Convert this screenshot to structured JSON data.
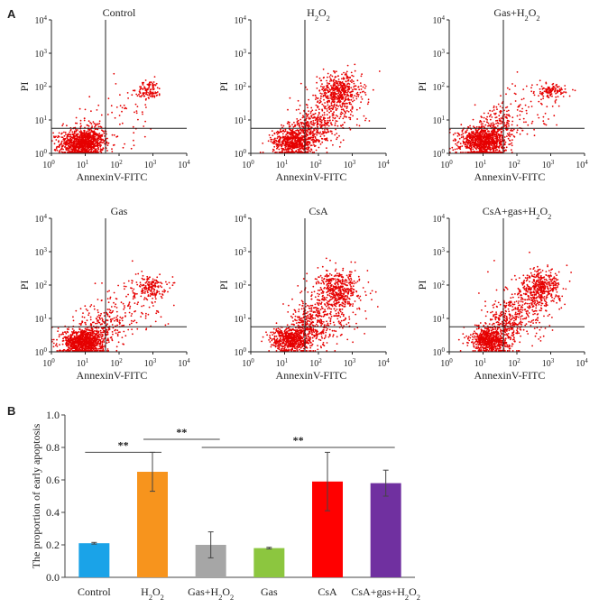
{
  "panel_a_label": "A",
  "panel_b_label": "B",
  "chart_data": [
    {
      "type": "scatter",
      "title": "Control",
      "xlabel": "AnnexinV-FITC",
      "ylabel": "PI",
      "x_ticks": [
        "10",
        "10",
        "10",
        "10",
        "10"
      ],
      "x_tick_exps": [
        "0",
        "1",
        "2",
        "3",
        "4"
      ],
      "y_ticks": [
        "10",
        "10",
        "10",
        "10",
        "10"
      ],
      "y_tick_exps": [
        "0",
        "1",
        "2",
        "3",
        "4"
      ],
      "xlim": [
        0,
        4
      ],
      "ylim": [
        0,
        4
      ],
      "scale": "log",
      "quadrant_gate": {
        "x": 1.6,
        "y": 0.75
      },
      "clusters": [
        {
          "cx": 0.9,
          "cy": 0.28,
          "sx": 0.32,
          "sy": 0.2,
          "n": 900
        },
        {
          "cx": 1.15,
          "cy": 0.55,
          "sx": 0.35,
          "sy": 0.25,
          "n": 150
        },
        {
          "cx": 2.9,
          "cy": 1.9,
          "sx": 0.18,
          "sy": 0.14,
          "n": 110
        },
        {
          "cx": 2.2,
          "cy": 1.3,
          "sx": 0.6,
          "sy": 0.5,
          "n": 60
        }
      ]
    },
    {
      "type": "scatter",
      "title": "H",
      "title_sub": "2",
      "title_mid": "O",
      "title_sub2": "2",
      "xlabel": "AnnexinV-FITC",
      "ylabel": "PI",
      "x_ticks": [
        "10",
        "10",
        "10",
        "10",
        "10"
      ],
      "x_tick_exps": [
        "0",
        "1",
        "2",
        "3",
        "4"
      ],
      "y_ticks": [
        "10",
        "10",
        "10",
        "10",
        "10"
      ],
      "y_tick_exps": [
        "0",
        "1",
        "2",
        "3",
        "4"
      ],
      "xlim": [
        0,
        4
      ],
      "ylim": [
        0,
        4
      ],
      "scale": "log",
      "quadrant_gate": {
        "x": 1.6,
        "y": 0.75
      },
      "clusters": [
        {
          "cx": 1.25,
          "cy": 0.35,
          "sx": 0.3,
          "sy": 0.2,
          "n": 600
        },
        {
          "cx": 1.8,
          "cy": 0.75,
          "sx": 0.35,
          "sy": 0.3,
          "n": 300
        },
        {
          "cx": 2.65,
          "cy": 1.85,
          "sx": 0.32,
          "sy": 0.28,
          "n": 450
        },
        {
          "cx": 2.4,
          "cy": 1.3,
          "sx": 0.45,
          "sy": 0.45,
          "n": 200
        }
      ]
    },
    {
      "type": "scatter",
      "title": "Gas+H",
      "title_sub": "2",
      "title_mid": "O",
      "title_sub2": "2",
      "xlabel": "AnnexinV-FITC",
      "ylabel": "PI",
      "x_ticks": [
        "10",
        "10",
        "10",
        "10",
        "10"
      ],
      "x_tick_exps": [
        "0",
        "1",
        "2",
        "3",
        "4"
      ],
      "y_ticks": [
        "10",
        "10",
        "10",
        "10",
        "10"
      ],
      "y_tick_exps": [
        "0",
        "1",
        "2",
        "3",
        "4"
      ],
      "xlim": [
        0,
        4
      ],
      "ylim": [
        0,
        4
      ],
      "scale": "log",
      "quadrant_gate": {
        "x": 1.6,
        "y": 0.75
      },
      "clusters": [
        {
          "cx": 1.0,
          "cy": 0.35,
          "sx": 0.33,
          "sy": 0.22,
          "n": 900
        },
        {
          "cx": 1.55,
          "cy": 0.85,
          "sx": 0.3,
          "sy": 0.3,
          "n": 180
        },
        {
          "cx": 3.0,
          "cy": 1.85,
          "sx": 0.22,
          "sy": 0.1,
          "n": 120
        },
        {
          "cx": 2.3,
          "cy": 1.35,
          "sx": 0.5,
          "sy": 0.4,
          "n": 70
        }
      ]
    },
    {
      "type": "scatter",
      "title": "Gas",
      "xlabel": "AnnexinV-FITC",
      "ylabel": "PI",
      "x_ticks": [
        "10",
        "10",
        "10",
        "10",
        "10"
      ],
      "x_tick_exps": [
        "0",
        "1",
        "2",
        "3",
        "4"
      ],
      "y_ticks": [
        "10",
        "10",
        "10",
        "10",
        "10"
      ],
      "y_tick_exps": [
        "0",
        "1",
        "2",
        "3",
        "4"
      ],
      "xlim": [
        0,
        4
      ],
      "ylim": [
        0,
        4
      ],
      "scale": "log",
      "quadrant_gate": {
        "x": 1.6,
        "y": 0.75
      },
      "clusters": [
        {
          "cx": 0.95,
          "cy": 0.3,
          "sx": 0.3,
          "sy": 0.2,
          "n": 900
        },
        {
          "cx": 1.5,
          "cy": 0.75,
          "sx": 0.35,
          "sy": 0.35,
          "n": 200
        },
        {
          "cx": 2.9,
          "cy": 1.95,
          "sx": 0.25,
          "sy": 0.16,
          "n": 160
        },
        {
          "cx": 2.3,
          "cy": 1.4,
          "sx": 0.5,
          "sy": 0.45,
          "n": 120
        }
      ]
    },
    {
      "type": "scatter",
      "title": "CsA",
      "xlabel": "AnnexinV-FITC",
      "ylabel": "PI",
      "x_ticks": [
        "10",
        "10",
        "10",
        "10",
        "10"
      ],
      "x_tick_exps": [
        "0",
        "1",
        "2",
        "3",
        "4"
      ],
      "y_ticks": [
        "10",
        "10",
        "10",
        "10",
        "10"
      ],
      "y_tick_exps": [
        "0",
        "1",
        "2",
        "3",
        "4"
      ],
      "xlim": [
        0,
        4
      ],
      "ylim": [
        0,
        4
      ],
      "scale": "log",
      "quadrant_gate": {
        "x": 1.6,
        "y": 0.75
      },
      "clusters": [
        {
          "cx": 1.2,
          "cy": 0.35,
          "sx": 0.3,
          "sy": 0.2,
          "n": 600
        },
        {
          "cx": 1.8,
          "cy": 0.8,
          "sx": 0.35,
          "sy": 0.35,
          "n": 300
        },
        {
          "cx": 2.6,
          "cy": 1.85,
          "sx": 0.3,
          "sy": 0.3,
          "n": 420
        },
        {
          "cx": 2.3,
          "cy": 1.3,
          "sx": 0.45,
          "sy": 0.45,
          "n": 200
        }
      ]
    },
    {
      "type": "scatter",
      "title": "CsA+gas+H",
      "title_sub": "2",
      "title_mid": "O",
      "title_sub2": "2",
      "xlabel": "AnnexinV-FITC",
      "ylabel": "PI",
      "x_ticks": [
        "10",
        "10",
        "10",
        "10",
        "10"
      ],
      "x_tick_exps": [
        "0",
        "1",
        "2",
        "3",
        "4"
      ],
      "y_ticks": [
        "10",
        "10",
        "10",
        "10",
        "10"
      ],
      "y_tick_exps": [
        "0",
        "1",
        "2",
        "3",
        "4"
      ],
      "xlim": [
        0,
        4
      ],
      "ylim": [
        0,
        4
      ],
      "scale": "log",
      "quadrant_gate": {
        "x": 1.6,
        "y": 0.75
      },
      "clusters": [
        {
          "cx": 1.2,
          "cy": 0.35,
          "sx": 0.28,
          "sy": 0.2,
          "n": 600
        },
        {
          "cx": 1.75,
          "cy": 0.85,
          "sx": 0.3,
          "sy": 0.35,
          "n": 280
        },
        {
          "cx": 2.7,
          "cy": 1.9,
          "sx": 0.28,
          "sy": 0.28,
          "n": 420
        },
        {
          "cx": 2.3,
          "cy": 1.3,
          "sx": 0.45,
          "sy": 0.45,
          "n": 180
        }
      ]
    },
    {
      "type": "bar",
      "categories": [
        "Control",
        "H2O2",
        "Gas+H2O2",
        "Gas",
        "CsA",
        "CsA+gas+H2O2"
      ],
      "category_labels": [
        {
          "main": "Control"
        },
        {
          "main": "H",
          "sub": "2",
          "mid": "O",
          "sub2": "2"
        },
        {
          "main": "Gas+H",
          "sub": "2",
          "mid": "O",
          "sub2": "2"
        },
        {
          "main": "Gas"
        },
        {
          "main": "CsA"
        },
        {
          "main": "CsA+gas+H",
          "sub": "2",
          "mid": "O",
          "sub2": "2"
        }
      ],
      "values": [
        0.21,
        0.65,
        0.2,
        0.18,
        0.59,
        0.58
      ],
      "errors": [
        0.005,
        0.12,
        0.08,
        0.005,
        0.18,
        0.08
      ],
      "colors": [
        "#1aa3e8",
        "#f7941d",
        "#a6a6a6",
        "#8cc63f",
        "#ff0000",
        "#7030a0"
      ],
      "ylabel": "The proportion of early apoptosis",
      "ylim": [
        0,
        1.0
      ],
      "y_ticks": [
        "0.0",
        "0.2",
        "0.4",
        "0.6",
        "0.8",
        "1.0"
      ],
      "significance": [
        {
          "from": 0,
          "to": 1,
          "label": "**"
        },
        {
          "from": 1,
          "to": 2,
          "label": "**"
        },
        {
          "from": 2,
          "to": 5,
          "label": "**"
        }
      ]
    }
  ]
}
